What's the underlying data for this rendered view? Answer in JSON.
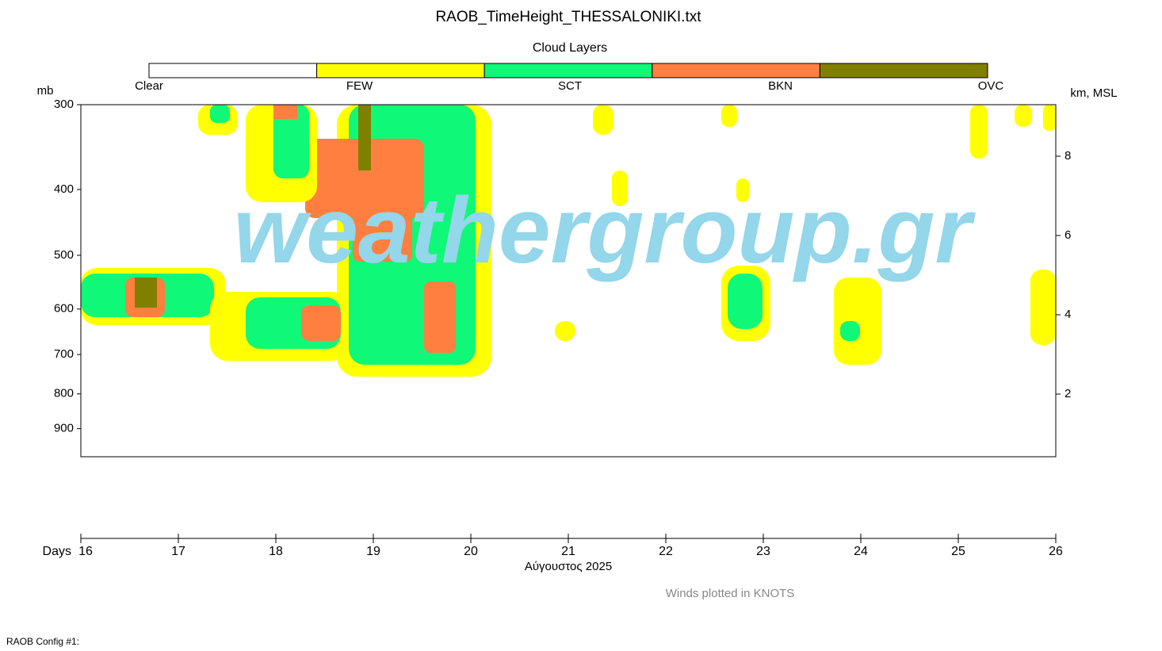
{
  "chart_data": {
    "type": "time-height",
    "title": "RAOB_TimeHeight_THESSALONIKI.txt",
    "legend_title": "Cloud Layers",
    "cloud_layers": [
      {
        "name": "Clear",
        "color": "#ffffff"
      },
      {
        "name": "FEW",
        "color": "#ffff00"
      },
      {
        "name": "SCT",
        "color": "#10f878"
      },
      {
        "name": "BKN",
        "color": "#ff7f40"
      },
      {
        "name": "OVC",
        "color": "#808000"
      }
    ],
    "y_label": "mb",
    "y2_label": "km, MSL",
    "ylim": [
      300,
      990
    ],
    "yticks": [
      300,
      400,
      500,
      600,
      700,
      800,
      900
    ],
    "log_scale": true,
    "y2lim": [
      0.42,
      9.3
    ],
    "y2ticks": [
      2,
      4,
      6,
      8
    ],
    "x_label": "Days",
    "x_sublabel": "Αύγουστος 2025",
    "xlim": [
      16,
      26
    ],
    "xticks": [
      16,
      17,
      18,
      19,
      20,
      21,
      22,
      23,
      24,
      25,
      26
    ],
    "watermark": "weathergroup.gr",
    "note": "Winds plotted in KNOTS",
    "footer": "RAOB Config #1:"
  }
}
